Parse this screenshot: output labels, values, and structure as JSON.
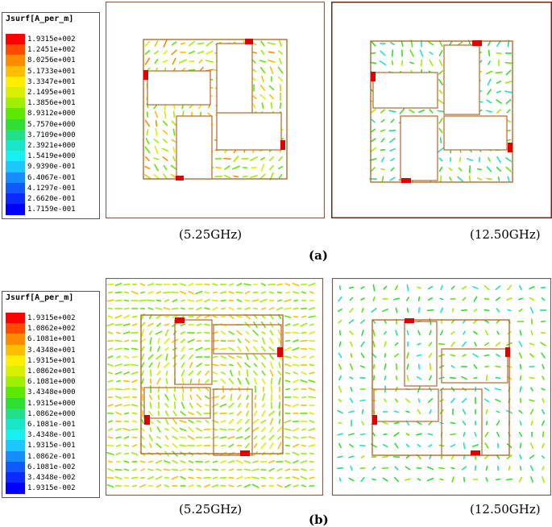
{
  "legend_a": {
    "title": "Jsurf[A_per_m]",
    "labels": [
      "1.9315e+002",
      "1.2451e+002",
      "8.0256e+001",
      "5.1733e+001",
      "3.3347e+001",
      "2.1495e+001",
      "1.3856e+001",
      "8.9312e+000",
      "5.7570e+000",
      "3.7109e+000",
      "2.3921e+000",
      "1.5419e+000",
      "9.9390e-001",
      "6.4067e-001",
      "4.1297e-001",
      "2.6620e-001",
      "1.7159e-001"
    ]
  },
  "legend_b": {
    "title": "Jsurf[A_per_m]",
    "labels": [
      "1.9315e+002",
      "1.0862e+002",
      "6.1081e+001",
      "3.4348e+001",
      "1.9315e+001",
      "1.0862e+001",
      "6.1081e+000",
      "3.4348e+000",
      "1.9315e+000",
      "1.0862e+000",
      "6.1081e-001",
      "3.4348e-001",
      "1.9315e-001",
      "1.0862e-001",
      "6.1081e-002",
      "3.4348e-002",
      "1.9315e-002"
    ]
  },
  "colors": [
    "#ff0000",
    "#ff4a00",
    "#ff8a00",
    "#ffbf00",
    "#ffee00",
    "#d8f000",
    "#9ef000",
    "#5ee800",
    "#2ede30",
    "#22e089",
    "#18e6c8",
    "#16f0f0",
    "#1ac8ff",
    "#168cff",
    "#1058ff",
    "#0a2aff",
    "#0000ff"
  ],
  "captions": {
    "a_left": "(5.25GHz)",
    "a_right": "(12.50GHz)",
    "a_label": "(a)",
    "b_left": "(5.25GHz)",
    "b_right": "(12.50GHz)",
    "b_label": "(b)"
  }
}
